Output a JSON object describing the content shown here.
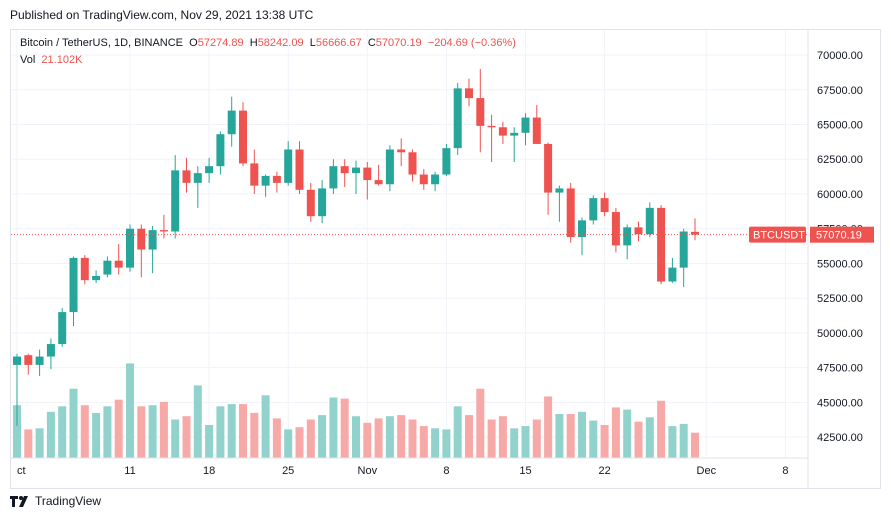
{
  "header": {
    "published": "Published on TradingView.com, Nov 29, 2021 13:38 UTC"
  },
  "legend": {
    "symbol": "Bitcoin / TetherUS, 1D, BINANCE",
    "o_label": "O",
    "o_value": "57274.89",
    "h_label": "H",
    "h_value": "58242.09",
    "l_label": "L",
    "l_value": "56666.67",
    "c_label": "C",
    "c_value": "57070.19",
    "change": "−204.69 (−0.36%)",
    "vol_label": "Vol",
    "vol_value": "21.102K"
  },
  "price_tag": {
    "symbol": "BTCUSDT",
    "value": "57070.19"
  },
  "footer": {
    "brand": "TradingView"
  },
  "colors": {
    "up": "#26a69a",
    "down": "#ef5350",
    "up_vol": "#92d2cc",
    "down_vol": "#f7a9a7",
    "grid": "#f0f3fa",
    "axis_text": "#131722"
  },
  "chart_data": {
    "type": "candlestick",
    "title": "Bitcoin / TetherUS, 1D, BINANCE",
    "x_tick_labels": [
      {
        "label": "ct",
        "index": 0
      },
      {
        "label": "11",
        "index": 10
      },
      {
        "label": "18",
        "index": 17
      },
      {
        "label": "25",
        "index": 24
      },
      {
        "label": "Nov",
        "index": 31
      },
      {
        "label": "8",
        "index": 38
      },
      {
        "label": "15",
        "index": 45
      },
      {
        "label": "22",
        "index": 52
      },
      {
        "label": "Dec",
        "index": 61
      },
      {
        "label": "8",
        "index": 68
      }
    ],
    "y_ticks": [
      42500,
      45000,
      47500,
      50000,
      52500,
      55000,
      57500,
      60000,
      62500,
      65000,
      67500,
      70000
    ],
    "ylim": [
      41000,
      71800
    ],
    "x_range": [
      0,
      70
    ],
    "last_price": 57070.19,
    "volume_max": 100,
    "candles": [
      {
        "o": 47700,
        "h": 48500,
        "l": 43300,
        "c": 48300
      },
      {
        "o": 48400,
        "h": 48500,
        "l": 47000,
        "c": 47700
      },
      {
        "o": 47700,
        "h": 48800,
        "l": 46900,
        "c": 48300
      },
      {
        "o": 48300,
        "h": 49600,
        "l": 47400,
        "c": 49200
      },
      {
        "o": 49200,
        "h": 51800,
        "l": 49000,
        "c": 51500
      },
      {
        "o": 51500,
        "h": 55500,
        "l": 50500,
        "c": 55400
      },
      {
        "o": 55400,
        "h": 55600,
        "l": 53500,
        "c": 53800
      },
      {
        "o": 53800,
        "h": 54500,
        "l": 53600,
        "c": 54100
      },
      {
        "o": 54200,
        "h": 55500,
        "l": 54000,
        "c": 55200
      },
      {
        "o": 55200,
        "h": 56400,
        "l": 54200,
        "c": 54700
      },
      {
        "o": 54700,
        "h": 57800,
        "l": 54400,
        "c": 57500
      },
      {
        "o": 57500,
        "h": 57800,
        "l": 54000,
        "c": 56000
      },
      {
        "o": 56000,
        "h": 57700,
        "l": 54300,
        "c": 57400
      },
      {
        "o": 57400,
        "h": 58500,
        "l": 56800,
        "c": 57300
      },
      {
        "o": 57300,
        "h": 62800,
        "l": 56800,
        "c": 61700
      },
      {
        "o": 61700,
        "h": 62600,
        "l": 60100,
        "c": 60800
      },
      {
        "o": 60800,
        "h": 62000,
        "l": 59000,
        "c": 61500
      },
      {
        "o": 61500,
        "h": 62600,
        "l": 60800,
        "c": 62000
      },
      {
        "o": 62000,
        "h": 64500,
        "l": 61400,
        "c": 64300
      },
      {
        "o": 64300,
        "h": 67000,
        "l": 63400,
        "c": 66000
      },
      {
        "o": 66000,
        "h": 66600,
        "l": 62000,
        "c": 62200
      },
      {
        "o": 62200,
        "h": 63200,
        "l": 60000,
        "c": 60600
      },
      {
        "o": 60600,
        "h": 61400,
        "l": 59800,
        "c": 61300
      },
      {
        "o": 61300,
        "h": 61600,
        "l": 60100,
        "c": 60800
      },
      {
        "o": 60800,
        "h": 63800,
        "l": 60600,
        "c": 63200
      },
      {
        "o": 63200,
        "h": 63800,
        "l": 60000,
        "c": 60300
      },
      {
        "o": 60300,
        "h": 60800,
        "l": 58000,
        "c": 58400
      },
      {
        "o": 58400,
        "h": 61000,
        "l": 57900,
        "c": 60400
      },
      {
        "o": 60400,
        "h": 62500,
        "l": 60000,
        "c": 62000
      },
      {
        "o": 62000,
        "h": 62500,
        "l": 60500,
        "c": 61500
      },
      {
        "o": 61500,
        "h": 62400,
        "l": 60000,
        "c": 61900
      },
      {
        "o": 61900,
        "h": 62300,
        "l": 59600,
        "c": 61000
      },
      {
        "o": 61000,
        "h": 62100,
        "l": 60600,
        "c": 60700
      },
      {
        "o": 60700,
        "h": 63500,
        "l": 60200,
        "c": 63200
      },
      {
        "o": 63200,
        "h": 64000,
        "l": 62000,
        "c": 63000
      },
      {
        "o": 63000,
        "h": 63200,
        "l": 60900,
        "c": 61400
      },
      {
        "o": 61400,
        "h": 61800,
        "l": 60300,
        "c": 60700
      },
      {
        "o": 60700,
        "h": 61600,
        "l": 60200,
        "c": 61400
      },
      {
        "o": 61400,
        "h": 63600,
        "l": 61300,
        "c": 63300
      },
      {
        "o": 63300,
        "h": 68000,
        "l": 62800,
        "c": 67600
      },
      {
        "o": 67600,
        "h": 68300,
        "l": 66300,
        "c": 66900
      },
      {
        "o": 66900,
        "h": 69000,
        "l": 63000,
        "c": 64900
      },
      {
        "o": 64900,
        "h": 65700,
        "l": 62300,
        "c": 64800
      },
      {
        "o": 64800,
        "h": 65200,
        "l": 63600,
        "c": 64200
      },
      {
        "o": 64200,
        "h": 64800,
        "l": 62300,
        "c": 64400
      },
      {
        "o": 64400,
        "h": 65800,
        "l": 63500,
        "c": 65500
      },
      {
        "o": 65500,
        "h": 66400,
        "l": 63600,
        "c": 63600
      },
      {
        "o": 63600,
        "h": 63700,
        "l": 58500,
        "c": 60100
      },
      {
        "o": 60100,
        "h": 60600,
        "l": 58000,
        "c": 60400
      },
      {
        "o": 60400,
        "h": 60800,
        "l": 56500,
        "c": 56900
      },
      {
        "o": 56900,
        "h": 58300,
        "l": 55600,
        "c": 58100
      },
      {
        "o": 58100,
        "h": 59900,
        "l": 57800,
        "c": 59700
      },
      {
        "o": 59700,
        "h": 60100,
        "l": 58400,
        "c": 58700
      },
      {
        "o": 58700,
        "h": 59000,
        "l": 55800,
        "c": 56300
      },
      {
        "o": 56300,
        "h": 57800,
        "l": 55300,
        "c": 57600
      },
      {
        "o": 57600,
        "h": 58000,
        "l": 56600,
        "c": 57100
      },
      {
        "o": 57100,
        "h": 59400,
        "l": 56900,
        "c": 59000
      },
      {
        "o": 59000,
        "h": 59200,
        "l": 53500,
        "c": 53700
      },
      {
        "o": 53700,
        "h": 55400,
        "l": 53600,
        "c": 54700
      },
      {
        "o": 54700,
        "h": 57500,
        "l": 53300,
        "c": 57300
      },
      {
        "o": 57275,
        "h": 58242,
        "l": 56667,
        "c": 57070
      }
    ],
    "volume": [
      48,
      26,
      27,
      42,
      47,
      63,
      48,
      41,
      47,
      53,
      86,
      47,
      48,
      51,
      35,
      38,
      66,
      30,
      47,
      49,
      49,
      41,
      57,
      36,
      26,
      28,
      35,
      39,
      55,
      54,
      38,
      32,
      36,
      38,
      39,
      35,
      29,
      27,
      26,
      47,
      39,
      63,
      35,
      38,
      27,
      29,
      35,
      56,
      40,
      40,
      42,
      34,
      30,
      46,
      44,
      33,
      37,
      52,
      29,
      31,
      23
    ]
  }
}
